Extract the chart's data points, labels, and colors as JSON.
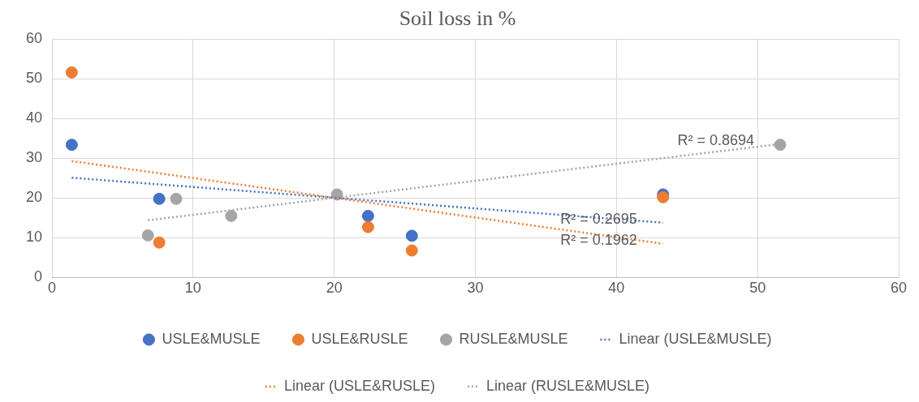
{
  "chart_data": {
    "type": "scatter",
    "title": "Soil loss in %",
    "xlim": [
      0,
      60
    ],
    "xticks": [
      0,
      10,
      20,
      30,
      40,
      50,
      60
    ],
    "ylim": [
      0,
      60
    ],
    "yticks": [
      0,
      10,
      20,
      30,
      40,
      50,
      60
    ],
    "grid": true,
    "legend": "bottom",
    "marker": "circle",
    "series": [
      {
        "name": "USLE&MUSLE",
        "color": "#4472c4",
        "x": [
          1.4,
          7.6,
          22.4,
          25.5,
          43.3
        ],
        "values": [
          33.4,
          19.8,
          15.5,
          10.5,
          20.9
        ]
      },
      {
        "name": "USLE&RUSLE",
        "color": "#ed7d31",
        "x": [
          1.4,
          7.6,
          22.4,
          25.5,
          43.3
        ],
        "values": [
          51.6,
          8.8,
          12.7,
          6.8,
          20.2
        ]
      },
      {
        "name": "RUSLE&MUSLE",
        "color": "#a5a5a5",
        "x": [
          6.8,
          8.8,
          12.7,
          20.2,
          51.6
        ],
        "values": [
          10.6,
          19.8,
          15.5,
          20.9,
          33.4
        ]
      },
      {
        "name": "Linear (USLE&MUSLE)",
        "type": "line",
        "line_style": "dotted",
        "marker": "none",
        "color": "#4472c4",
        "x": [
          1.4,
          43.3
        ],
        "values": [
          25.1,
          13.8
        ]
      },
      {
        "name": "Linear (USLE&RUSLE)",
        "type": "line",
        "line_style": "dotted",
        "marker": "none",
        "color": "#ed7d31",
        "x": [
          1.4,
          43.3
        ],
        "values": [
          29.3,
          8.5
        ]
      },
      {
        "name": "Linear (RUSLE&MUSLE)",
        "type": "line",
        "line_style": "dotted",
        "marker": "none",
        "color": "#a5a5a5",
        "x": [
          6.8,
          51.6
        ],
        "values": [
          14.4,
          33.6
        ]
      }
    ],
    "annotations": [
      "R² = 0.2695",
      "R² = 0.1962",
      "R² = 0.8694"
    ]
  }
}
